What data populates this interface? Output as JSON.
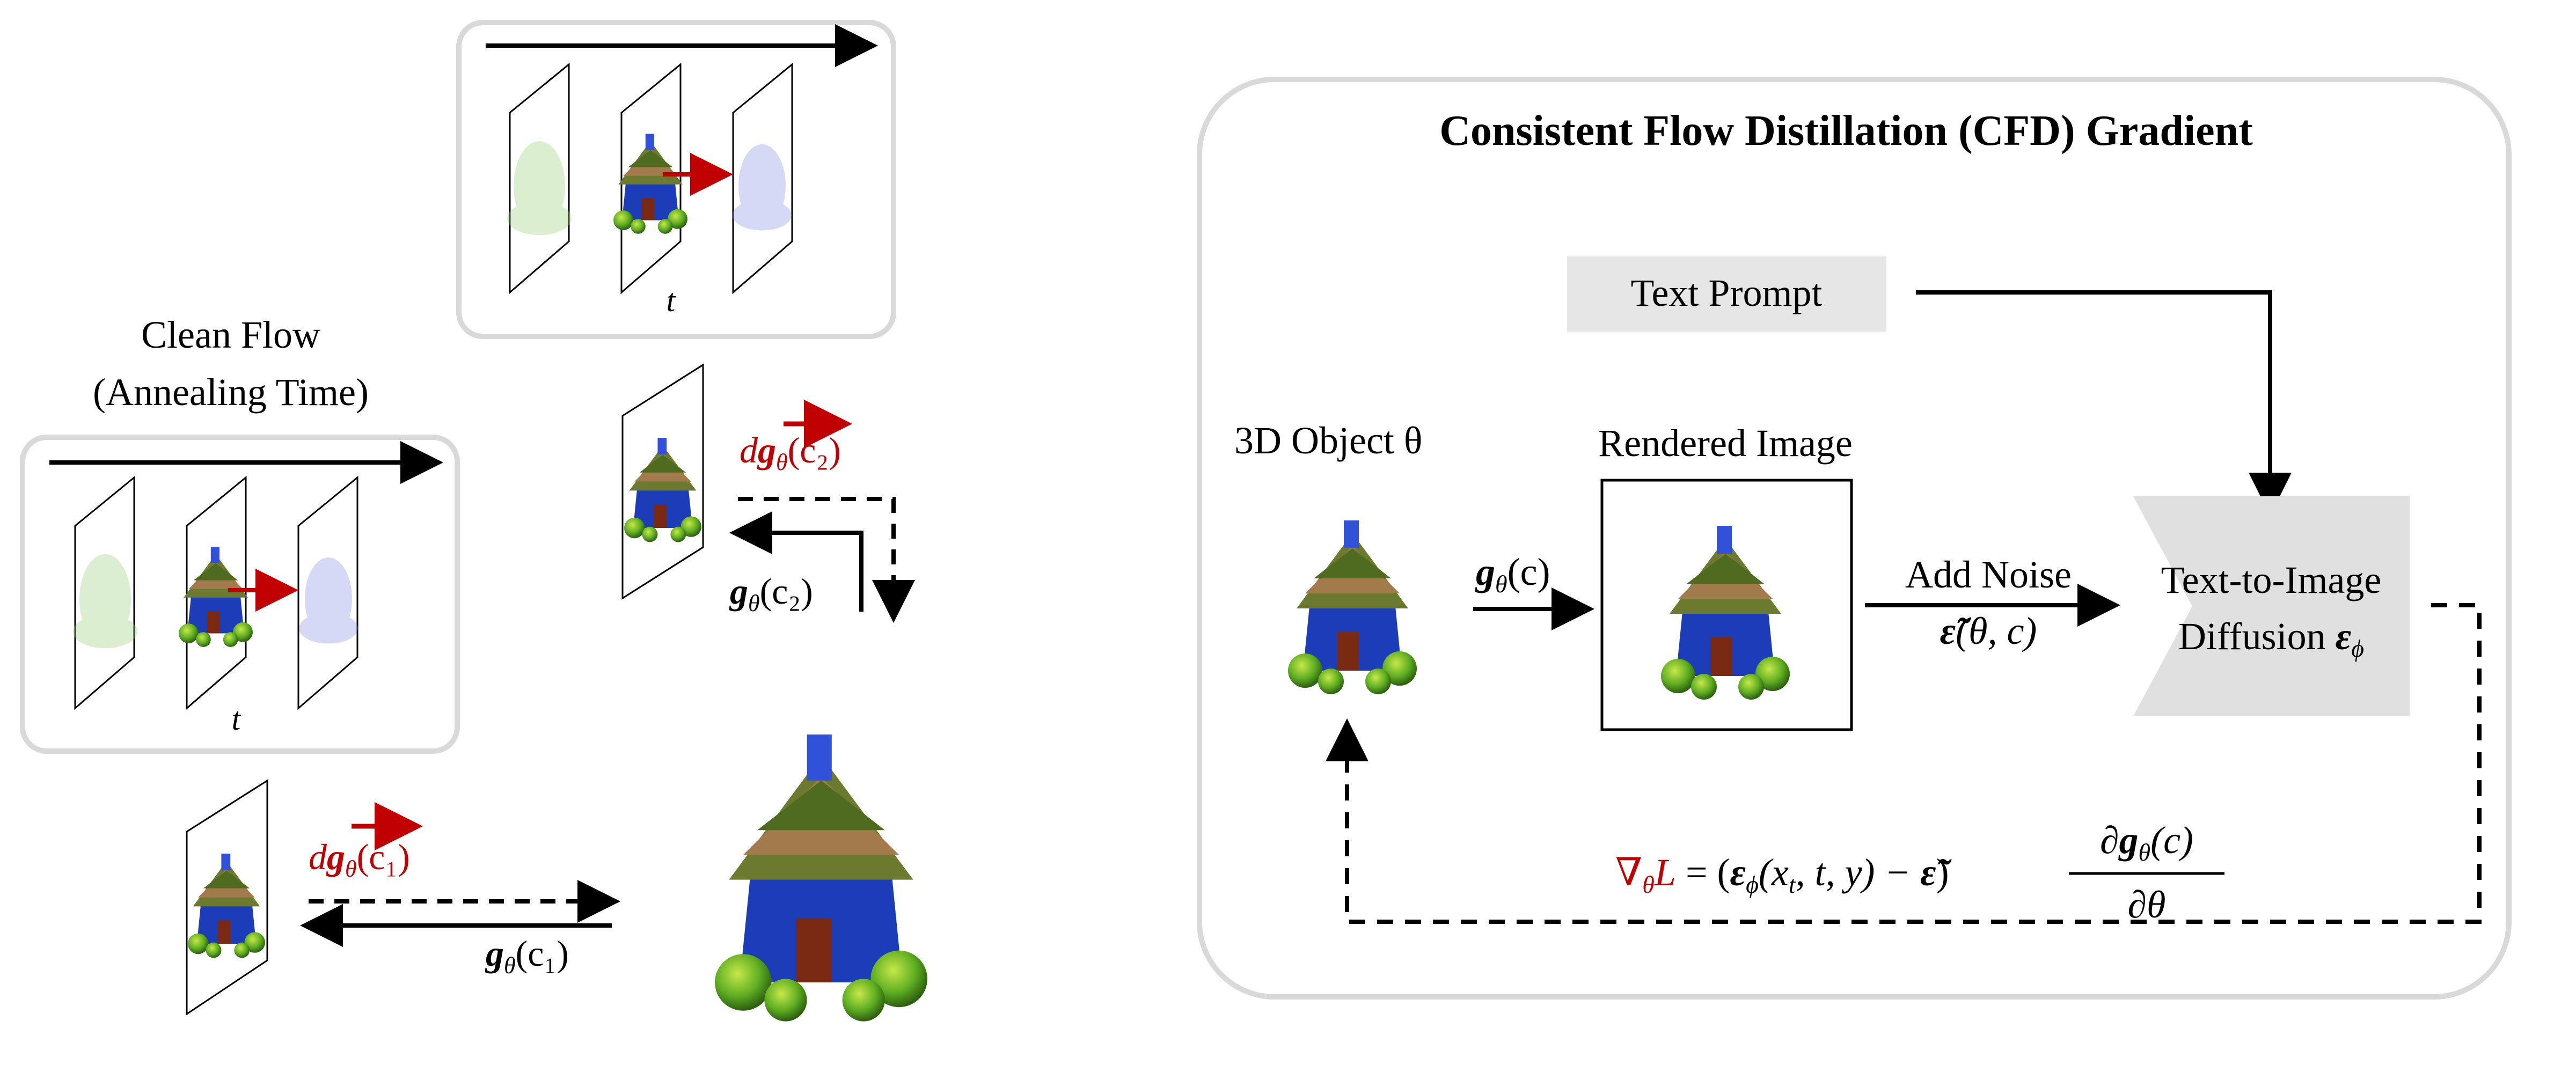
{
  "left": {
    "clean_flow_title_line1": "Clean Flow",
    "clean_flow_title_line2": "(Annealing Time)",
    "time_label": "t",
    "flow_c2_label": "g",
    "flow_c2_sub": "θ",
    "flow_c2_arg": "(c₂)",
    "dflow_c2_prefix": "d",
    "flow_c1_label": "g",
    "flow_c1_sub": "θ",
    "flow_c1_arg": "(c₁)",
    "dflow_c1_prefix": "d"
  },
  "cfd": {
    "title": "Consistent Flow Distillation (CFD) Gradient",
    "text_prompt": "Text Prompt",
    "object_label": "3D Object θ",
    "rendered_label": "Rendered Image",
    "render_op": "g",
    "render_op_sub": "θ",
    "render_op_arg": "(c)",
    "add_noise": "Add Noise",
    "noise_symbol": "ε̃",
    "noise_args": "(θ, c)",
    "diffusion_line1": "Text-to-Image",
    "diffusion_line2": "Diffusion",
    "diffusion_symbol": "ε",
    "diffusion_sub": "ϕ",
    "gradient_lhs": "∇",
    "gradient_lhs_sub": "θ",
    "gradient_lhs_L": "L",
    "gradient_eq": "= (",
    "gradient_eps": "ε",
    "gradient_eps_sub": "ϕ",
    "gradient_eps_args": "(x",
    "gradient_xt_sub": "t",
    "gradient_rest": ", t, y) − ",
    "gradient_eps_tilde": "ε̃",
    "gradient_close": ")",
    "frac_num_d": "∂",
    "frac_num_g": "g",
    "frac_num_sub": "θ",
    "frac_num_arg": "(c)",
    "frac_den": "∂θ"
  },
  "colors": {
    "accent_red": "#c00000",
    "panel_border": "#d9d9d9",
    "prompt_fill": "#e6e6e6",
    "diffusion_fill": "#e0e0e0",
    "line": "#000000"
  }
}
